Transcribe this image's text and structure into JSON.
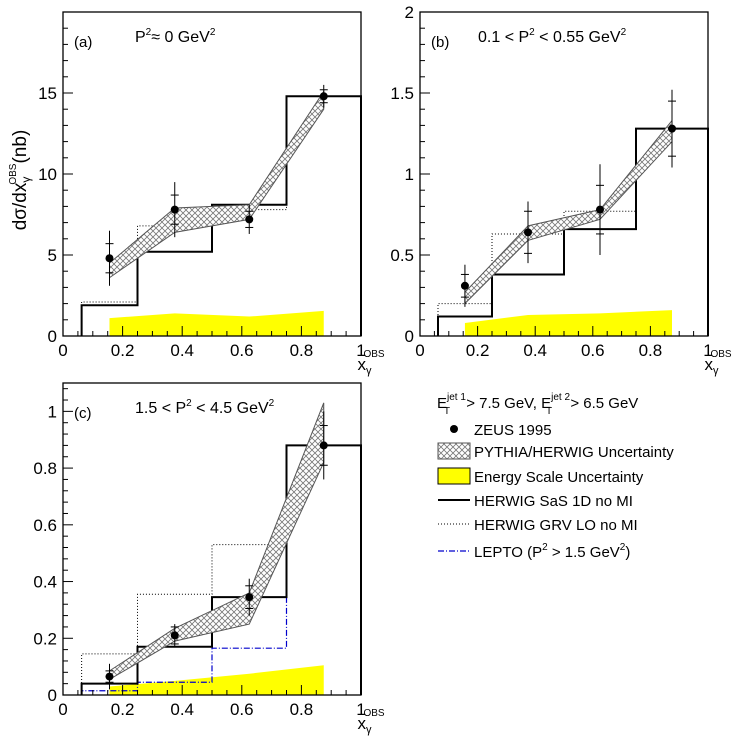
{
  "figure": {
    "ylabel": "dσ/dx",
    "ylabel_sub": "γ",
    "ylabel_sup": "OBS",
    "ylabel_unit": "(nb)",
    "xlabel": "x",
    "xlabel_sub": "γ",
    "xlabel_sup": "OBS"
  },
  "legend": {
    "cuts_E1": "E",
    "cuts_E1_sup": "jet 1",
    "cuts_E1_sub": "T",
    "cuts_E1_val": " > 7.5 GeV, ",
    "cuts_E2": "E",
    "cuts_E2_sup": "jet 2",
    "cuts_E2_sub": "T",
    "cuts_E2_val": " > 6.5 GeV",
    "zeus": "ZEUS 1995",
    "pythia_herwig": "PYTHIA/HERWIG Uncertainty",
    "energy_scale": "Energy Scale Uncertainty",
    "herwig_sas": "HERWIG SaS 1D no MI",
    "herwig_grv": "HERWIG GRV LO no MI",
    "lepto_pre": "LEPTO (P",
    "lepto_sup": "2",
    "lepto_post": " > 1.5 GeV",
    "lepto_sup2": "2",
    "lepto_end": ")",
    "colors": {
      "energy_scale": "#ffff00",
      "lepto": "#0000cc",
      "band": "#888888"
    }
  },
  "chart_data": [
    {
      "type": "histogram",
      "label": "(a)",
      "title_pre": "P",
      "title_sup": "2",
      "title_mid": "≈ 0 GeV",
      "title_sup2": "2",
      "title_post": "",
      "xlim": [
        0,
        1
      ],
      "ylim": [
        0,
        20
      ],
      "xticks": [
        0,
        0.2,
        0.4,
        0.6,
        0.8,
        1
      ],
      "xtick_labels": [
        "0",
        "0.2",
        "0.4",
        "0.6",
        "0.8",
        "1"
      ],
      "yticks": [
        0,
        5,
        10,
        15
      ],
      "ytick_labels": [
        "0",
        "5",
        "10",
        "15"
      ],
      "bins": [
        0.0625,
        0.25,
        0.5,
        0.75,
        1.0
      ],
      "data": {
        "x": [
          0.156,
          0.375,
          0.625,
          0.875
        ],
        "y": [
          4.8,
          7.8,
          7.2,
          14.8
        ],
        "err_stat": [
          0.9,
          0.9,
          0.5,
          0.4
        ],
        "err_tot": [
          1.7,
          1.7,
          0.9,
          0.7
        ]
      },
      "herwig_sas": [
        1.9,
        5.2,
        8.1,
        14.8
      ],
      "herwig_grv": [
        2.1,
        6.8,
        7.8,
        14.8
      ],
      "band": {
        "x": [
          0.156,
          0.375,
          0.625,
          0.875
        ],
        "low": [
          3.6,
          6.4,
          7.2,
          14.0
        ],
        "high": [
          4.5,
          7.9,
          8.1,
          15.1
        ]
      },
      "energy_scale": {
        "x": [
          0.156,
          0.375,
          0.625,
          0.875
        ],
        "y": [
          1.1,
          1.4,
          1.2,
          1.55
        ]
      }
    },
    {
      "type": "histogram",
      "label": "(b)",
      "title_pre": "0.1 < P",
      "title_sup": "2",
      "title_mid": " < 0.55 GeV",
      "title_sup2": "2",
      "title_post": "",
      "xlim": [
        0,
        1
      ],
      "ylim": [
        0,
        2
      ],
      "xticks": [
        0,
        0.2,
        0.4,
        0.6,
        0.8,
        1
      ],
      "xtick_labels": [
        "0",
        "0.2",
        "0.4",
        "0.6",
        "0.8",
        "1"
      ],
      "yticks": [
        0,
        0.5,
        1,
        1.5,
        2
      ],
      "ytick_labels": [
        "0",
        "0.5",
        "1",
        "1.5",
        "2"
      ],
      "bins": [
        0.0625,
        0.25,
        0.5,
        0.75,
        1.0
      ],
      "data": {
        "x": [
          0.156,
          0.375,
          0.625,
          0.875
        ],
        "y": [
          0.31,
          0.64,
          0.78,
          1.28
        ],
        "err_stat": [
          0.07,
          0.13,
          0.15,
          0.17
        ],
        "err_tot": [
          0.13,
          0.19,
          0.28,
          0.24
        ]
      },
      "herwig_sas": [
        0.12,
        0.38,
        0.66,
        1.28
      ],
      "herwig_grv": [
        0.2,
        0.63,
        0.77,
        1.28
      ],
      "band": {
        "x": [
          0.156,
          0.375,
          0.625,
          0.875
        ],
        "low": [
          0.2,
          0.59,
          0.72,
          1.2
        ],
        "high": [
          0.27,
          0.68,
          0.78,
          1.33
        ]
      },
      "energy_scale": {
        "x": [
          0.156,
          0.375,
          0.625,
          0.875
        ],
        "y": [
          0.08,
          0.13,
          0.14,
          0.16
        ]
      }
    },
    {
      "type": "histogram",
      "label": "(c)",
      "title_pre": "1.5 < P",
      "title_sup": "2",
      "title_mid": " < 4.5 GeV",
      "title_sup2": "2",
      "title_post": "",
      "xlim": [
        0,
        1
      ],
      "ylim": [
        0,
        1.1
      ],
      "xticks": [
        0,
        0.2,
        0.4,
        0.6,
        0.8,
        1
      ],
      "xtick_labels": [
        "0",
        "0.2",
        "0.4",
        "0.6",
        "0.8",
        "1"
      ],
      "yticks": [
        0,
        0.2,
        0.4,
        0.6,
        0.8,
        1
      ],
      "ytick_labels": [
        "0",
        "0.2",
        "0.4",
        "0.6",
        "0.8",
        "1"
      ],
      "bins": [
        0.0625,
        0.25,
        0.5,
        0.75,
        1.0
      ],
      "data": {
        "x": [
          0.156,
          0.375,
          0.625,
          0.875
        ],
        "y": [
          0.065,
          0.21,
          0.345,
          0.88
        ],
        "err_stat": [
          0.02,
          0.03,
          0.04,
          0.07
        ],
        "err_tot": [
          0.045,
          0.04,
          0.065,
          0.12
        ]
      },
      "herwig_sas": [
        0.04,
        0.17,
        0.345,
        0.88
      ],
      "herwig_grv": [
        0.145,
        0.355,
        0.53,
        0.88
      ],
      "lepto": [
        0.015,
        0.045,
        0.165,
        0.88
      ],
      "band": {
        "x": [
          0.156,
          0.375,
          0.625,
          0.875
        ],
        "low": [
          0.055,
          0.19,
          0.25,
          0.82
        ],
        "high": [
          0.085,
          0.235,
          0.36,
          1.03
        ]
      },
      "energy_scale": {
        "x": [
          0.156,
          0.375,
          0.625,
          0.875
        ],
        "y": [
          0.03,
          0.05,
          0.075,
          0.105
        ]
      }
    }
  ]
}
